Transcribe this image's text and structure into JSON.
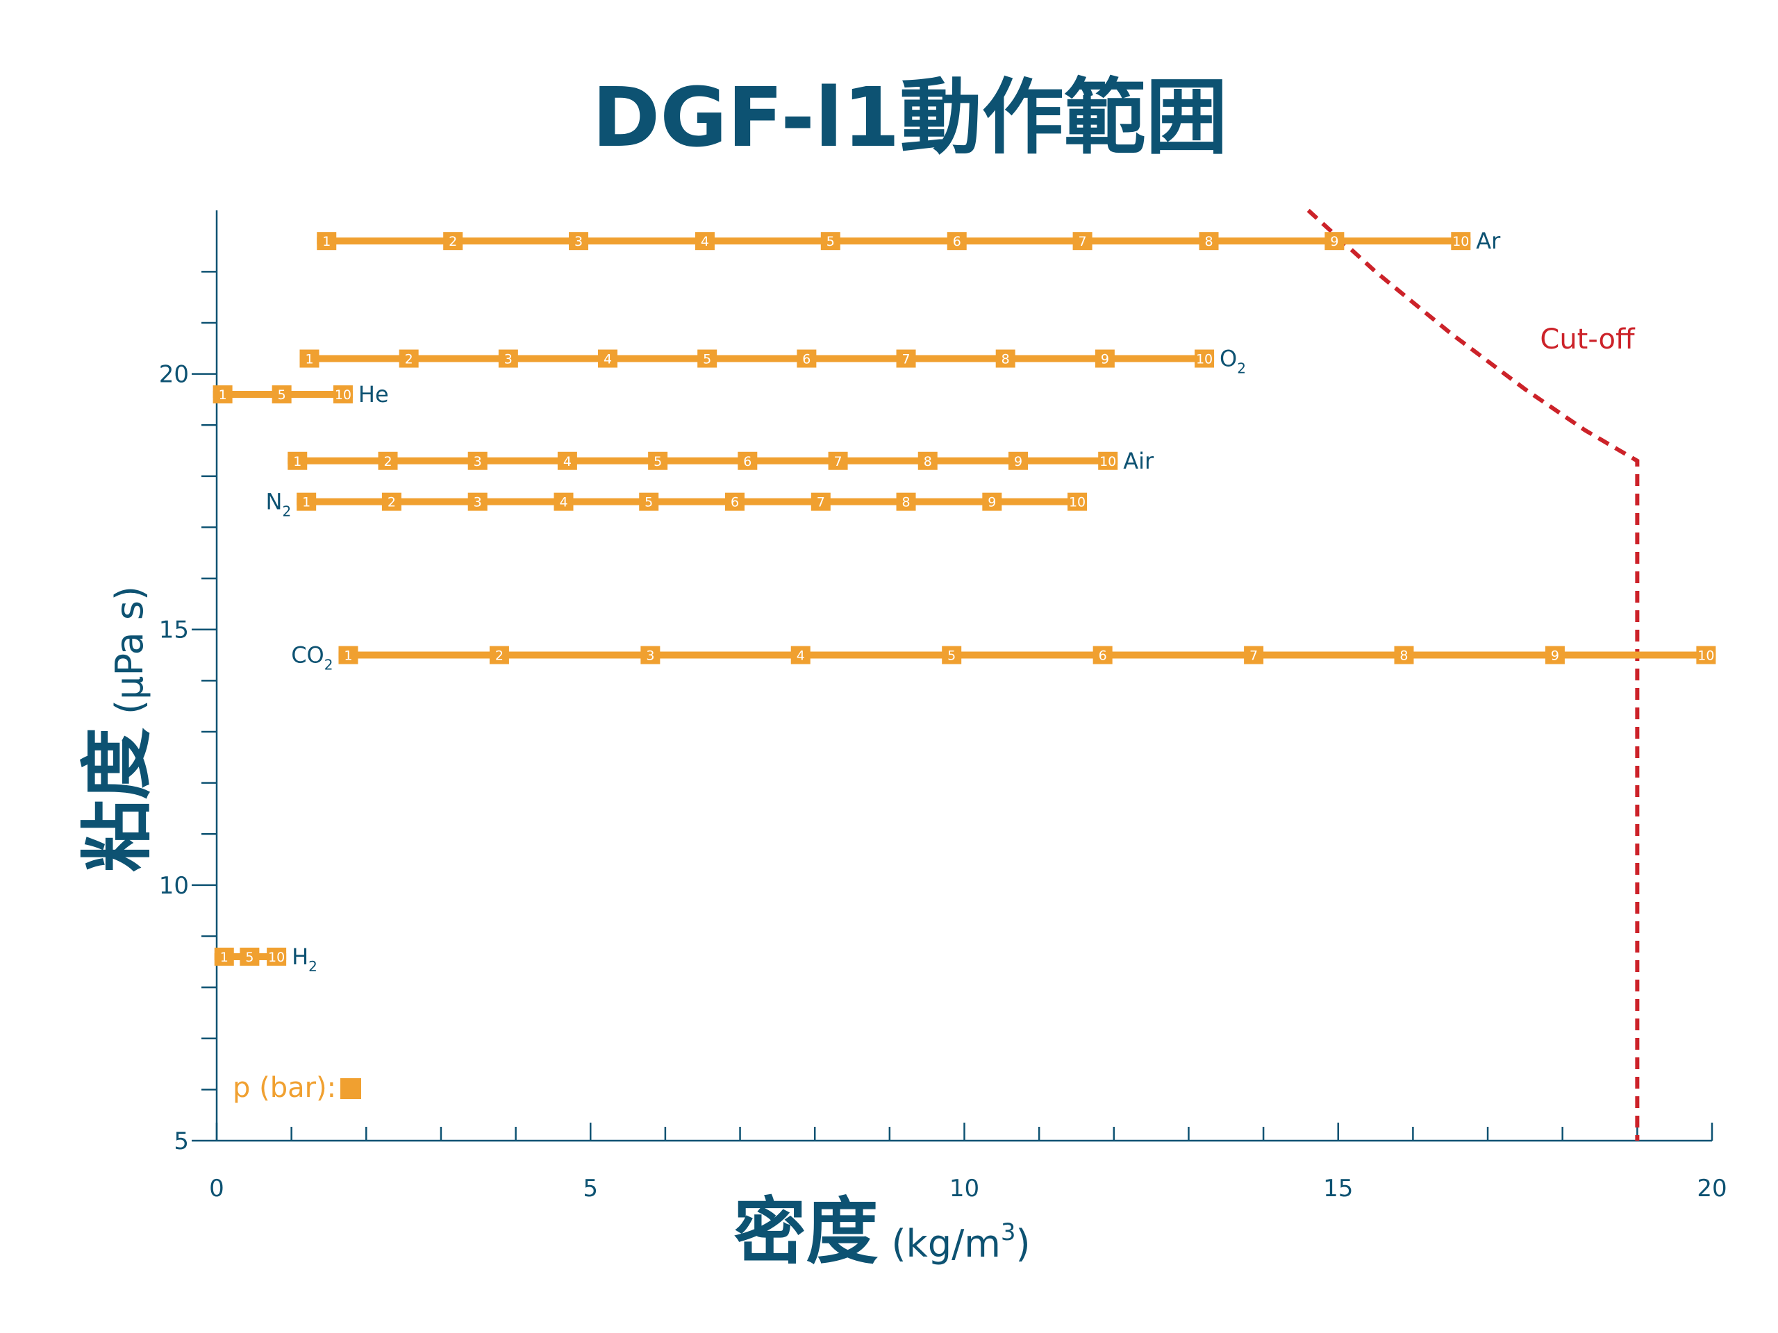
{
  "chart_data": {
    "type": "line",
    "title": "DGF-l1動作範囲",
    "xlabel": {
      "main": "密度",
      "unit": "(kg/m",
      "sup": "3",
      "close": ")"
    },
    "ylabel": {
      "main": "粘度",
      "unit": "(µPa s)"
    },
    "xlim": [
      0,
      20
    ],
    "ylim": [
      5,
      23
    ],
    "x_major_ticks": [
      0,
      5,
      10,
      15,
      20
    ],
    "x_minor_step": 1,
    "y_major_ticks": [
      5,
      10,
      15,
      20
    ],
    "y_minor_step": 1,
    "grid": false,
    "colors": {
      "axis": "#0d5272",
      "series": "#f0a030",
      "cutoff": "#cc2229"
    },
    "legend": {
      "label": "p (bar):",
      "placement": "bottom-left"
    },
    "series": [
      {
        "name": "Ar",
        "sub": "",
        "label_side": "right",
        "viscosity": 22.6,
        "points": [
          {
            "p": "1",
            "x": 1.47
          },
          {
            "p": "2",
            "x": 3.16
          },
          {
            "p": "3",
            "x": 4.84
          },
          {
            "p": "4",
            "x": 6.53
          },
          {
            "p": "5",
            "x": 8.21
          },
          {
            "p": "6",
            "x": 9.9
          },
          {
            "p": "7",
            "x": 11.58
          },
          {
            "p": "8",
            "x": 13.27
          },
          {
            "p": "9",
            "x": 14.95
          },
          {
            "p": "10",
            "x": 16.64
          }
        ]
      },
      {
        "name": "O",
        "sub": "2",
        "label_side": "right",
        "viscosity": 20.3,
        "points": [
          {
            "p": "1",
            "x": 1.24
          },
          {
            "p": "2",
            "x": 2.57
          },
          {
            "p": "3",
            "x": 3.9
          },
          {
            "p": "4",
            "x": 5.23
          },
          {
            "p": "5",
            "x": 6.56
          },
          {
            "p": "6",
            "x": 7.89
          },
          {
            "p": "7",
            "x": 9.22
          },
          {
            "p": "8",
            "x": 10.55
          },
          {
            "p": "9",
            "x": 11.88
          },
          {
            "p": "10",
            "x": 13.21
          }
        ]
      },
      {
        "name": "He",
        "sub": "",
        "label_side": "right",
        "viscosity": 19.6,
        "points": [
          {
            "p": "1",
            "x": 0.08
          },
          {
            "p": "5",
            "x": 0.87
          },
          {
            "p": "10",
            "x": 1.69
          }
        ]
      },
      {
        "name": "Air",
        "sub": "",
        "label_side": "right",
        "viscosity": 18.3,
        "points": [
          {
            "p": "1",
            "x": 1.08
          },
          {
            "p": "2",
            "x": 2.29
          },
          {
            "p": "3",
            "x": 3.49
          },
          {
            "p": "4",
            "x": 4.69
          },
          {
            "p": "5",
            "x": 5.9
          },
          {
            "p": "6",
            "x": 7.1
          },
          {
            "p": "7",
            "x": 8.31
          },
          {
            "p": "8",
            "x": 9.51
          },
          {
            "p": "9",
            "x": 10.72
          },
          {
            "p": "10",
            "x": 11.92
          }
        ]
      },
      {
        "name": "N",
        "sub": "2",
        "label_side": "left",
        "viscosity": 17.5,
        "points": [
          {
            "p": "1",
            "x": 1.2
          },
          {
            "p": "2",
            "x": 2.34
          },
          {
            "p": "3",
            "x": 3.49
          },
          {
            "p": "4",
            "x": 4.64
          },
          {
            "p": "5",
            "x": 5.78
          },
          {
            "p": "6",
            "x": 6.93
          },
          {
            "p": "7",
            "x": 8.08
          },
          {
            "p": "8",
            "x": 9.22
          },
          {
            "p": "9",
            "x": 10.37
          },
          {
            "p": "10",
            "x": 11.51
          }
        ]
      },
      {
        "name": "CO",
        "sub": "2",
        "label_side": "left",
        "viscosity": 14.5,
        "points": [
          {
            "p": "1",
            "x": 1.76
          },
          {
            "p": "2",
            "x": 3.78
          },
          {
            "p": "3",
            "x": 5.8
          },
          {
            "p": "4",
            "x": 7.81
          },
          {
            "p": "5",
            "x": 9.83
          },
          {
            "p": "6",
            "x": 11.85
          },
          {
            "p": "7",
            "x": 13.87
          },
          {
            "p": "8",
            "x": 15.88
          },
          {
            "p": "9",
            "x": 17.9
          },
          {
            "p": "10",
            "x": 19.92
          }
        ]
      },
      {
        "name": "H",
        "sub": "2",
        "label_side": "right",
        "viscosity": 8.6,
        "points": [
          {
            "p": "1",
            "x": 0.1
          },
          {
            "p": "5",
            "x": 0.44
          },
          {
            "p": "10",
            "x": 0.8
          }
        ]
      }
    ],
    "cutoff": {
      "label": "Cut-off",
      "points": [
        [
          14.6,
          23.2
        ],
        [
          15.5,
          22.0
        ],
        [
          16.5,
          20.8
        ],
        [
          17.5,
          19.7
        ],
        [
          18.3,
          18.9
        ],
        [
          19.0,
          18.3
        ],
        [
          19.0,
          5
        ]
      ]
    }
  }
}
